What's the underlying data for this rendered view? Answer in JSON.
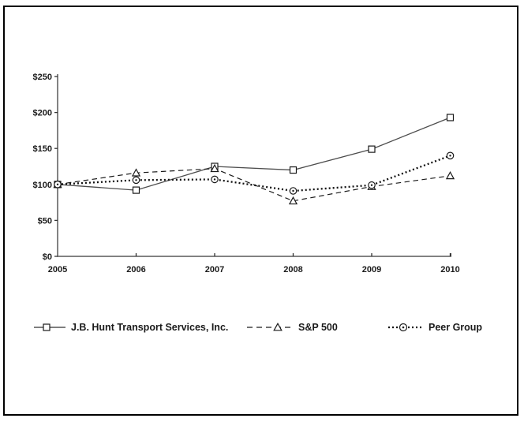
{
  "page": {
    "background_color": "#ffffff",
    "frame_border_color": "#000000"
  },
  "chart_data": {
    "type": "line",
    "title": "",
    "xlabel": "",
    "ylabel": "",
    "x": [
      2005,
      2006,
      2007,
      2008,
      2009,
      2010
    ],
    "xtick_labels": [
      "2005",
      "2006",
      "2007",
      "2008",
      "2009",
      "2010"
    ],
    "ytick_labels": [
      "$0",
      "$50",
      "$100",
      "$150",
      "$200",
      "$250"
    ],
    "ylim": [
      0,
      250
    ],
    "ytick_step": 50,
    "grid": false,
    "legend_position": "bottom",
    "axis_color": "#595959",
    "tick_color": "#333333",
    "text_color": "#1a1a1a",
    "series": [
      {
        "name": "J.B. Hunt Transport Services, Inc.",
        "marker": "open-square",
        "line_style": "solid",
        "color": "#4d4d4d",
        "values": [
          100,
          92,
          125,
          120,
          149,
          193
        ]
      },
      {
        "name": "S&P 500",
        "marker": "open-triangle",
        "line_style": "dashed",
        "color": "#1a1a1a",
        "values": [
          100,
          116,
          122,
          77,
          97,
          112
        ]
      },
      {
        "name": "Peer Group",
        "marker": "circle-dot",
        "line_style": "dotted",
        "color": "#111111",
        "values": [
          100,
          106,
          107,
          91,
          99,
          140
        ]
      }
    ]
  }
}
